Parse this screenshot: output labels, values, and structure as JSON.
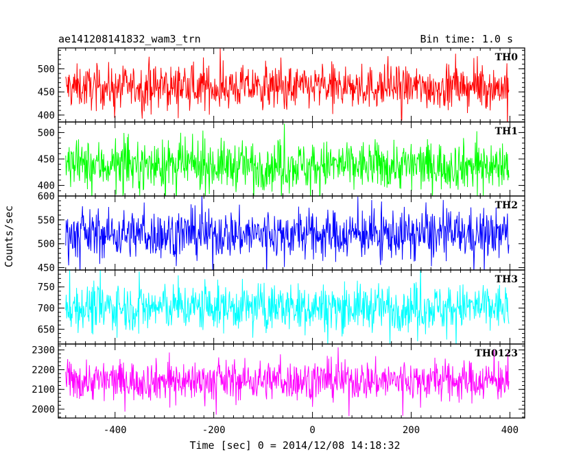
{
  "header": {
    "title": "ae141208141832_wam3_trn",
    "bin_time": "Bin time: 1.0 s"
  },
  "chart_data": {
    "type": "line",
    "title": "ae141208141832_wam3_trn",
    "xlabel": "Time [sec] 0 = 2014/12/08 14:18:32",
    "ylabel": "Counts/sec",
    "xlim": [
      -515,
      430
    ],
    "x_ticks": [
      -400,
      -200,
      0,
      200,
      400
    ],
    "x_range": [
      -500,
      398
    ],
    "bin_time_s": 1.0,
    "panels": [
      {
        "name": "TH0",
        "color": "#ff0000",
        "ylim": [
          385,
          545
        ],
        "yticks": [
          400,
          450,
          500
        ],
        "mean": 460,
        "spread": 50
      },
      {
        "name": "TH1",
        "color": "#00ff00",
        "ylim": [
          380,
          520
        ],
        "yticks": [
          400,
          450,
          500
        ],
        "mean": 438,
        "spread": 50
      },
      {
        "name": "TH2",
        "color": "#0000ff",
        "ylim": [
          445,
          600
        ],
        "yticks": [
          450,
          500,
          550,
          600
        ],
        "mean": 520,
        "spread": 55
      },
      {
        "name": "TH3",
        "color": "#00ffff",
        "ylim": [
          615,
          790
        ],
        "yticks": [
          650,
          700,
          750
        ],
        "mean": 702,
        "spread": 60
      },
      {
        "name": "TH0123",
        "color": "#ff00ff",
        "ylim": [
          1955,
          2330
        ],
        "yticks": [
          2000,
          2100,
          2200,
          2300
        ],
        "mean": 2145,
        "spread": 110
      }
    ]
  }
}
